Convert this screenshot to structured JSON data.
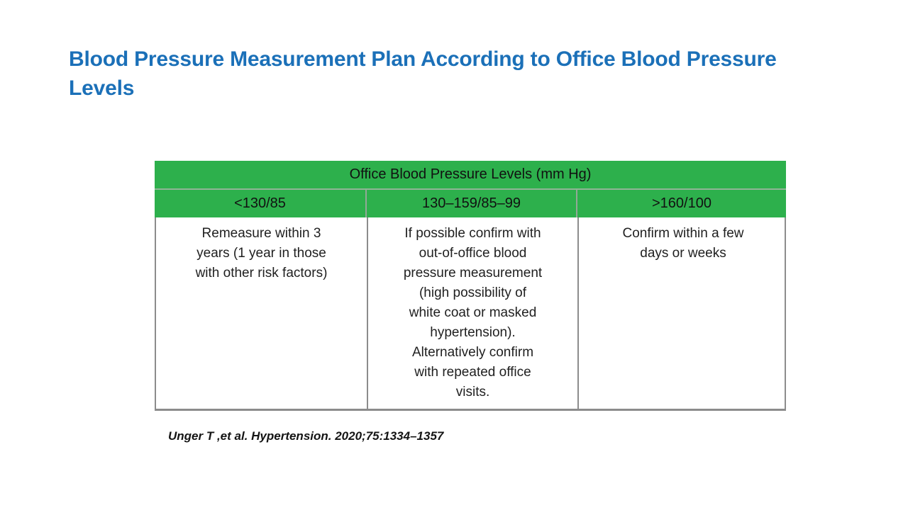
{
  "slide": {
    "title": "Blood Pressure Measurement Plan According to Office Blood Pressure Levels",
    "title_lines": {
      "line1": "Blood Pressure Measurement Plan According to Office Blood Pressure",
      "line2": "Levels"
    },
    "citation": "Unger T ,et al. Hypertension. 2020;75:1334–1357"
  },
  "table": {
    "header": "Office Blood Pressure Levels (mm Hg)",
    "columns": [
      {
        "range": "<130/85",
        "plan": "Remeasure within 3\nyears (1 year in those\nwith other risk factors)"
      },
      {
        "range": "130–159/85–99",
        "plan": "If possible confirm with\nout-of-office blood\npressure measurement\n(high possibility of\nwhite coat or masked\nhypertension).\nAlternatively confirm\nwith repeated office\nvisits."
      },
      {
        "range": ">160/100",
        "plan": "Confirm within a few\ndays or weeks"
      }
    ]
  },
  "colors": {
    "header_green": "#2db04c",
    "title_blue": "#1b70b8",
    "border_gray": "#8c8c8c",
    "text_dark": "#1f1f1f"
  }
}
